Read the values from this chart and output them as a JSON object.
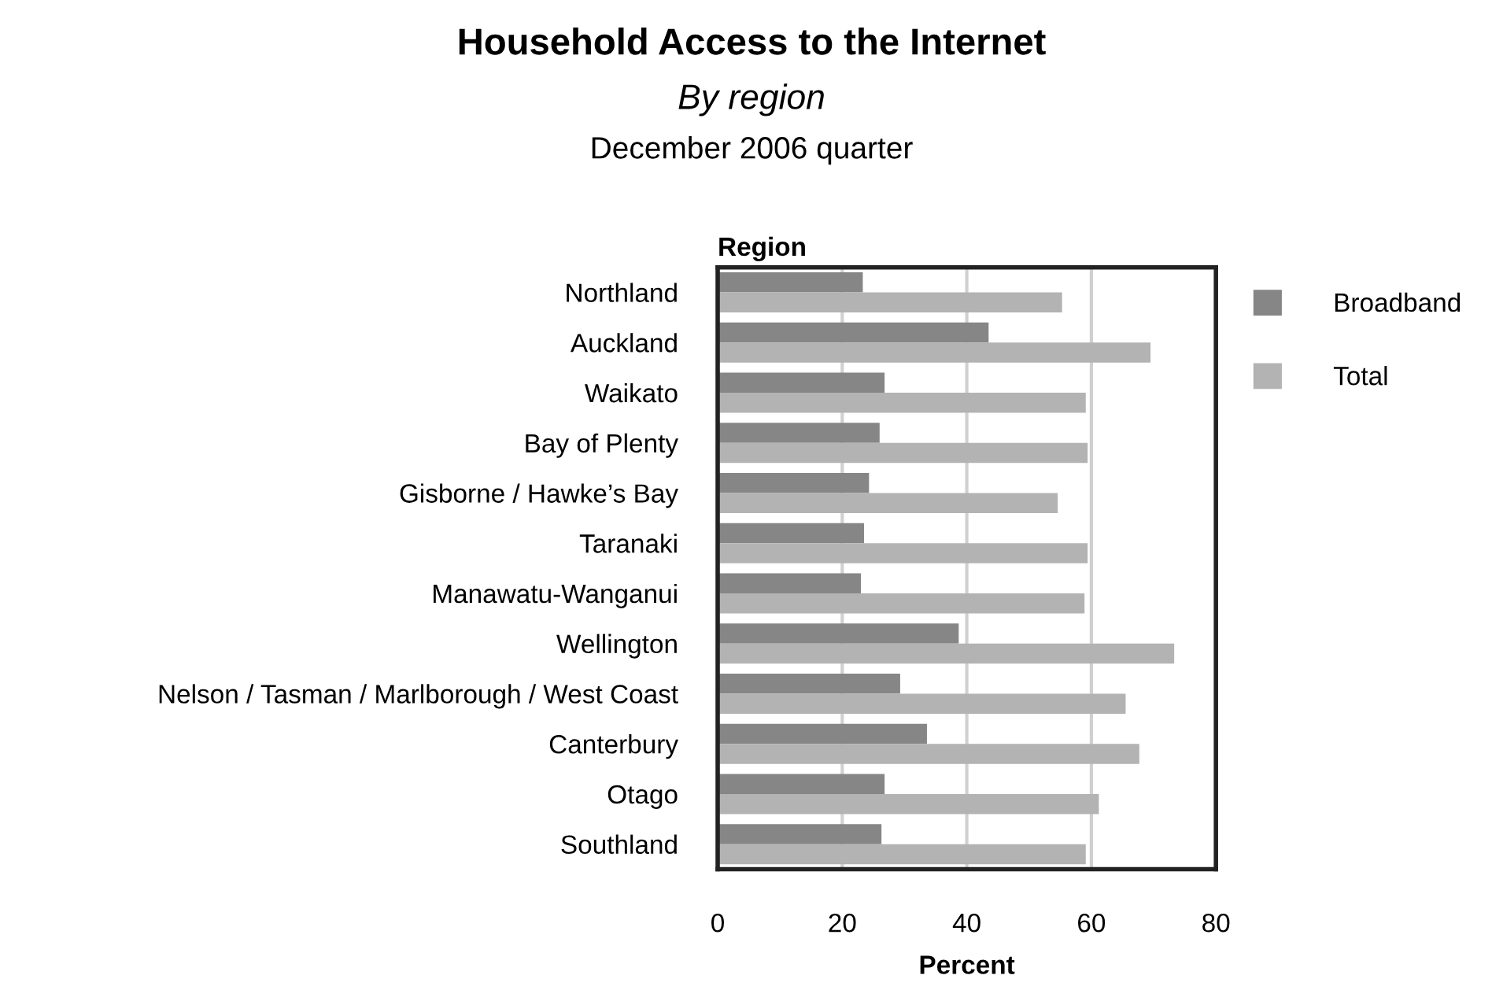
{
  "chart_data": {
    "type": "bar",
    "orientation": "horizontal",
    "title": "Household Access to the Internet",
    "subtitle": "By region",
    "annotations": [
      "December 2006 quarter"
    ],
    "xlabel": "Percent",
    "ylabel": "Region",
    "categories": [
      "Northland",
      "Auckland",
      "Waikato",
      "Bay of Plenty",
      "Gisborne / Hawke’s Bay",
      "Taranaki",
      "Manawatu-Wanganui",
      "Wellington",
      "Nelson / Tasman / Marlborough / West Coast",
      "Canterbury",
      "Otago",
      "Southland"
    ],
    "series": [
      {
        "name": "Broadband",
        "color": "#868686",
        "values": [
          23.3,
          43.5,
          26.8,
          26.0,
          24.3,
          23.5,
          23.0,
          38.7,
          29.3,
          33.6,
          26.8,
          26.3
        ]
      },
      {
        "name": "Total",
        "color": "#b3b3b3",
        "values": [
          55.3,
          69.5,
          59.1,
          59.4,
          54.6,
          59.4,
          58.9,
          73.3,
          65.5,
          67.7,
          61.2,
          59.1
        ]
      }
    ],
    "xlim": [
      0,
      80
    ],
    "xticks": [
      0,
      20,
      40,
      60,
      80
    ],
    "grid": "x",
    "legend": "right"
  }
}
